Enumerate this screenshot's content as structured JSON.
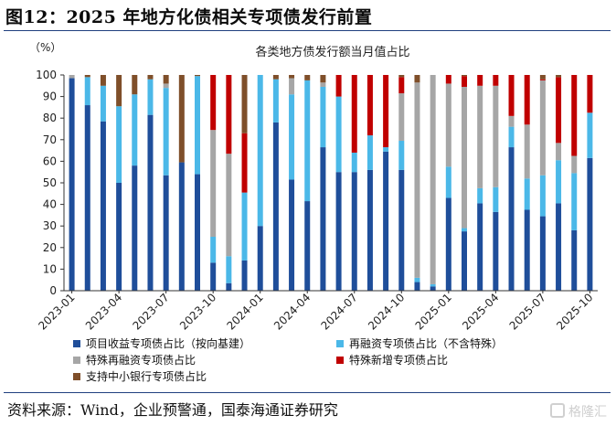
{
  "header": {
    "title": "图12：2025 年地方化债相关专项债发行前置"
  },
  "footer": {
    "source": "资料来源：Wind，企业预警通，国泰海通证券研究",
    "watermark": "格隆汇"
  },
  "colors": {
    "project": "#1f4e9a",
    "refinance_ex": "#4bb8e8",
    "special_refinance": "#a6a6a6",
    "special_new": "#c00000",
    "sme_bank": "#7f4f2a"
  },
  "chart_data": {
    "type": "bar",
    "stacked": true,
    "title": "各类地方债发行额当月值占比",
    "yunit": "（%）",
    "ylim": [
      0,
      100
    ],
    "yticks": [
      0,
      10,
      20,
      30,
      40,
      50,
      60,
      70,
      80,
      90,
      100
    ],
    "xtick_labels": [
      "2023-01",
      "2023-04",
      "2023-07",
      "2023-10",
      "2024-01",
      "2024-04",
      "2024-07",
      "2024-10",
      "2025-01",
      "2025-04",
      "2025-07",
      "2025-10"
    ],
    "categories": [
      "2023-01",
      "2023-02",
      "2023-03",
      "2023-04",
      "2023-05",
      "2023-06",
      "2023-07",
      "2023-08",
      "2023-09",
      "2023-10",
      "2023-11",
      "2023-12",
      "2024-01",
      "2024-02",
      "2024-03",
      "2024-04",
      "2024-05",
      "2024-06",
      "2024-07",
      "2024-08",
      "2024-09",
      "2024-10",
      "2024-11",
      "2024-12",
      "2025-01",
      "2025-02",
      "2025-03",
      "2025-04",
      "2025-05",
      "2025-06",
      "2025-07",
      "2025-08",
      "2025-09",
      "2025-10"
    ],
    "series": [
      {
        "name": "项目收益专项债占比（按向基建）",
        "key": "project",
        "values": [
          98.5,
          86,
          78.5,
          50,
          58,
          81.5,
          53.5,
          59.5,
          54,
          13,
          3.5,
          14,
          30,
          78,
          51.5,
          41.5,
          66.5,
          55,
          55,
          56,
          64.5,
          56,
          4,
          2,
          43,
          27.5,
          40.5,
          36.5,
          66.5,
          37.5,
          34.5,
          40.5,
          28,
          61.5
        ]
      },
      {
        "name": "再融资专项债占比（不含特殊）",
        "key": "refinance_ex",
        "values": [
          0,
          13,
          16.5,
          35.5,
          33,
          16.5,
          40.5,
          0,
          45.5,
          12,
          12.5,
          31.5,
          70,
          20,
          39.5,
          56,
          28,
          35,
          9,
          16,
          2,
          13.5,
          2,
          1,
          14.5,
          1.5,
          7,
          11.5,
          9.5,
          14.5,
          19,
          20,
          26.5,
          21
        ]
      },
      {
        "name": "特殊再融资专项债占比",
        "key": "special_refinance",
        "values": [
          1.5,
          0,
          0,
          0,
          0,
          0,
          2,
          0,
          0,
          49.5,
          47.5,
          0,
          0,
          0,
          7.5,
          0,
          2,
          0,
          0,
          0,
          0,
          22,
          90.5,
          97,
          38.5,
          65.5,
          47.5,
          47,
          5,
          25,
          44,
          8,
          8,
          0
        ]
      },
      {
        "name": "特殊新增专项债占比",
        "key": "special_new",
        "values": [
          0,
          0,
          0,
          0,
          0,
          0,
          0,
          0,
          0,
          25.5,
          36.5,
          27.5,
          0,
          0,
          0,
          0,
          0,
          10,
          36,
          28,
          33.5,
          7.5,
          0,
          0,
          4,
          5,
          5,
          5,
          19,
          23,
          0.5,
          30.5,
          37.5,
          17.5
        ]
      },
      {
        "name": "支持中小银行专项债占比",
        "key": "sme_bank",
        "values": [
          0,
          1,
          5,
          14.5,
          9,
          2,
          4,
          40.5,
          0.5,
          0,
          0,
          27,
          0,
          2,
          1.5,
          2.5,
          3.5,
          0,
          0,
          0,
          0,
          1,
          3.5,
          0,
          0,
          0.5,
          0,
          0,
          0,
          0,
          2,
          1,
          0,
          0
        ]
      }
    ],
    "legend": {
      "placement": "bottom",
      "items": [
        "项目收益专项债占比（按向基建）",
        "再融资专项债占比（不含特殊）",
        "特殊再融资专项债占比",
        "特殊新增专项债占比",
        "支持中小银行专项债占比"
      ]
    }
  }
}
